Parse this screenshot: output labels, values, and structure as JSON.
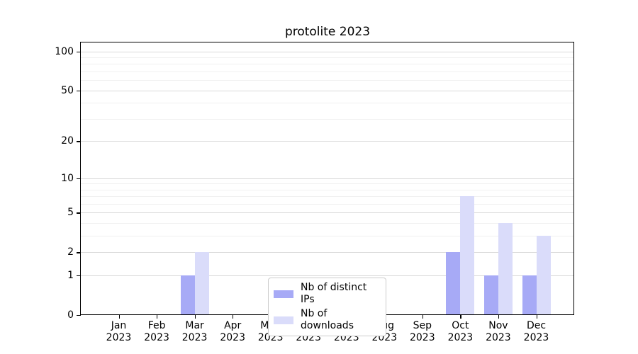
{
  "chart_data": {
    "type": "bar",
    "title": "protolite 2023",
    "categories": [
      "Jan 2023",
      "Feb 2023",
      "Mar 2023",
      "Apr 2023",
      "May 2023",
      "Jun 2023",
      "Jul 2023",
      "Aug 2023",
      "Sep 2023",
      "Oct 2023",
      "Nov 2023",
      "Dec 2023"
    ],
    "series": [
      {
        "key": "distinct-ips",
        "name": "Nb of distinct IPs",
        "color": "#a7aaf6",
        "values": [
          0,
          0,
          1,
          0,
          0,
          0,
          0,
          0,
          0,
          2,
          1,
          1
        ]
      },
      {
        "key": "downloads",
        "name": "Nb of downloads",
        "color": "#dadcfa",
        "values": [
          0,
          0,
          2,
          0,
          0,
          0,
          0,
          0,
          0,
          7,
          4,
          3
        ]
      }
    ],
    "yscale": "log1p",
    "ylim": [
      0,
      117
    ],
    "yticks": [
      0,
      1,
      2,
      5,
      10,
      20,
      50,
      100
    ],
    "yticks_minor": [
      3,
      4,
      6,
      7,
      8,
      9,
      30,
      40,
      60,
      70,
      80,
      90
    ],
    "xlabel": "",
    "ylabel": "",
    "grid": "horizontal",
    "legend_position": "bottom-center-inside"
  }
}
